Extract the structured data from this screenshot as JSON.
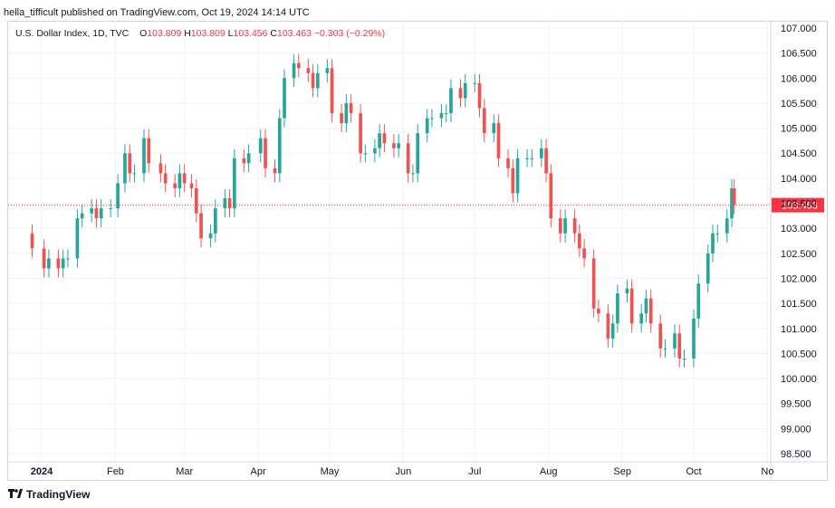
{
  "header": {
    "published": "hella_tifficult published on TradingView.com, Oct 19, 2024 14:14 UTC"
  },
  "legend": {
    "symbol": "U.S. Dollar Index, 1D, TVC",
    "o_label": "O",
    "o_value": "103.809",
    "h_label": "H",
    "h_value": "103.809",
    "l_label": "L",
    "l_value": "103.456",
    "c_label": "C",
    "c_value": "103.463",
    "change": "−0.303 (−0.29%)"
  },
  "footer": {
    "brand": "TradingView",
    "logo_icon": "tradingview-logo-icon"
  },
  "colors": {
    "up": "#26a69a",
    "down": "#ef5350",
    "grid": "#f0f3fa",
    "price_line": "#f23645",
    "axis_text": "#131722"
  },
  "chart_data": {
    "type": "candlestick",
    "symbol": "U.S. Dollar Index",
    "interval": "1D",
    "source": "TVC",
    "ylim": [
      98.5,
      107.0
    ],
    "y_ticks": [
      "107.000",
      "106.500",
      "106.000",
      "105.500",
      "105.000",
      "104.500",
      "104.000",
      "103.500",
      "103.000",
      "102.500",
      "102.000",
      "101.500",
      "101.000",
      "100.500",
      "100.000",
      "99.500",
      "99.000",
      "98.500"
    ],
    "x_ticks": [
      "2024",
      "Feb",
      "Mar",
      "Apr",
      "May",
      "Jun",
      "Jul",
      "Aug",
      "Sep",
      "Oct",
      "No"
    ],
    "last_price": 103.463,
    "last_price_label": "103.463",
    "grid": true,
    "series": [
      {
        "name": "close",
        "points": [
          [
            "Dec 27",
            102.6
          ],
          [
            "Jan 2",
            102.2
          ],
          [
            "Jan 4",
            102.4
          ],
          [
            "Jan 8",
            102.2
          ],
          [
            "Jan 10",
            102.4
          ],
          [
            "Jan 12",
            102.4
          ],
          [
            "Jan 16",
            103.2
          ],
          [
            "Jan 18",
            103.3
          ],
          [
            "Jan 22",
            103.4
          ],
          [
            "Jan 24",
            103.2
          ],
          [
            "Jan 26",
            103.4
          ],
          [
            "Jan 30",
            103.4
          ],
          [
            "Feb 2",
            103.9
          ],
          [
            "Feb 5",
            104.5
          ],
          [
            "Feb 7",
            104.1
          ],
          [
            "Feb 9",
            104.1
          ],
          [
            "Feb 13",
            104.8
          ],
          [
            "Feb 15",
            104.3
          ],
          [
            "Feb 20",
            104.1
          ],
          [
            "Feb 22",
            103.9
          ],
          [
            "Feb 26",
            103.8
          ],
          [
            "Feb 28",
            104.1
          ],
          [
            "Mar 1",
            103.9
          ],
          [
            "Mar 4",
            103.8
          ],
          [
            "Mar 6",
            103.3
          ],
          [
            "Mar 8",
            102.8
          ],
          [
            "Mar 12",
            102.9
          ],
          [
            "Mar 14",
            103.4
          ],
          [
            "Mar 18",
            103.6
          ],
          [
            "Mar 20",
            103.4
          ],
          [
            "Mar 22",
            104.4
          ],
          [
            "Mar 26",
            104.3
          ],
          [
            "Mar 28",
            104.5
          ],
          [
            "Apr 2",
            104.8
          ],
          [
            "Apr 4",
            104.2
          ],
          [
            "Apr 8",
            104.1
          ],
          [
            "Apr 10",
            105.2
          ],
          [
            "Apr 12",
            106.0
          ],
          [
            "Apr 16",
            106.3
          ],
          [
            "Apr 18",
            106.2
          ],
          [
            "Apr 22",
            106.1
          ],
          [
            "Apr 24",
            105.8
          ],
          [
            "Apr 26",
            106.1
          ],
          [
            "Apr 30",
            106.2
          ],
          [
            "May 2",
            105.3
          ],
          [
            "May 6",
            105.1
          ],
          [
            "May 8",
            105.5
          ],
          [
            "May 10",
            105.3
          ],
          [
            "May 14",
            104.5
          ],
          [
            "May 16",
            104.5
          ],
          [
            "May 20",
            104.6
          ],
          [
            "May 22",
            104.9
          ],
          [
            "May 24",
            104.7
          ],
          [
            "May 28",
            104.6
          ],
          [
            "May 30",
            104.7
          ],
          [
            "Jun 3",
            104.1
          ],
          [
            "Jun 5",
            104.1
          ],
          [
            "Jun 7",
            104.9
          ],
          [
            "Jun 11",
            105.2
          ],
          [
            "Jun 13",
            105.2
          ],
          [
            "Jun 17",
            105.3
          ],
          [
            "Jun 19",
            105.3
          ],
          [
            "Jun 21",
            105.8
          ],
          [
            "Jun 25",
            105.6
          ],
          [
            "Jun 27",
            105.9
          ],
          [
            "Jul 1",
            105.9
          ],
          [
            "Jul 3",
            105.4
          ],
          [
            "Jul 5",
            104.9
          ],
          [
            "Jul 9",
            105.1
          ],
          [
            "Jul 11",
            104.4
          ],
          [
            "Jul 15",
            104.2
          ],
          [
            "Jul 17",
            103.7
          ],
          [
            "Jul 19",
            104.4
          ],
          [
            "Jul 23",
            104.4
          ],
          [
            "Jul 25",
            104.4
          ],
          [
            "Jul 29",
            104.6
          ],
          [
            "Jul 31",
            104.1
          ],
          [
            "Aug 2",
            103.2
          ],
          [
            "Aug 6",
            102.9
          ],
          [
            "Aug 8",
            103.2
          ],
          [
            "Aug 12",
            102.9
          ],
          [
            "Aug 14",
            102.6
          ],
          [
            "Aug 16",
            102.4
          ],
          [
            "Aug 20",
            101.4
          ],
          [
            "Aug 22",
            101.3
          ],
          [
            "Aug 26",
            100.8
          ],
          [
            "Aug 28",
            101.1
          ],
          [
            "Aug 30",
            101.7
          ],
          [
            "Sep 3",
            101.8
          ],
          [
            "Sep 5",
            101.1
          ],
          [
            "Sep 9",
            101.3
          ],
          [
            "Sep 11",
            101.6
          ],
          [
            "Sep 13",
            101.1
          ],
          [
            "Sep 17",
            100.6
          ],
          [
            "Sep 19",
            100.6
          ],
          [
            "Sep 23",
            100.9
          ],
          [
            "Sep 25",
            100.4
          ],
          [
            "Sep 27",
            100.4
          ],
          [
            "Oct 1",
            101.2
          ],
          [
            "Oct 3",
            101.9
          ],
          [
            "Oct 7",
            102.5
          ],
          [
            "Oct 9",
            102.9
          ],
          [
            "Oct 11",
            102.9
          ],
          [
            "Oct 15",
            103.2
          ],
          [
            "Oct 17",
            103.8
          ],
          [
            "Oct 18",
            103.463
          ]
        ]
      }
    ]
  }
}
